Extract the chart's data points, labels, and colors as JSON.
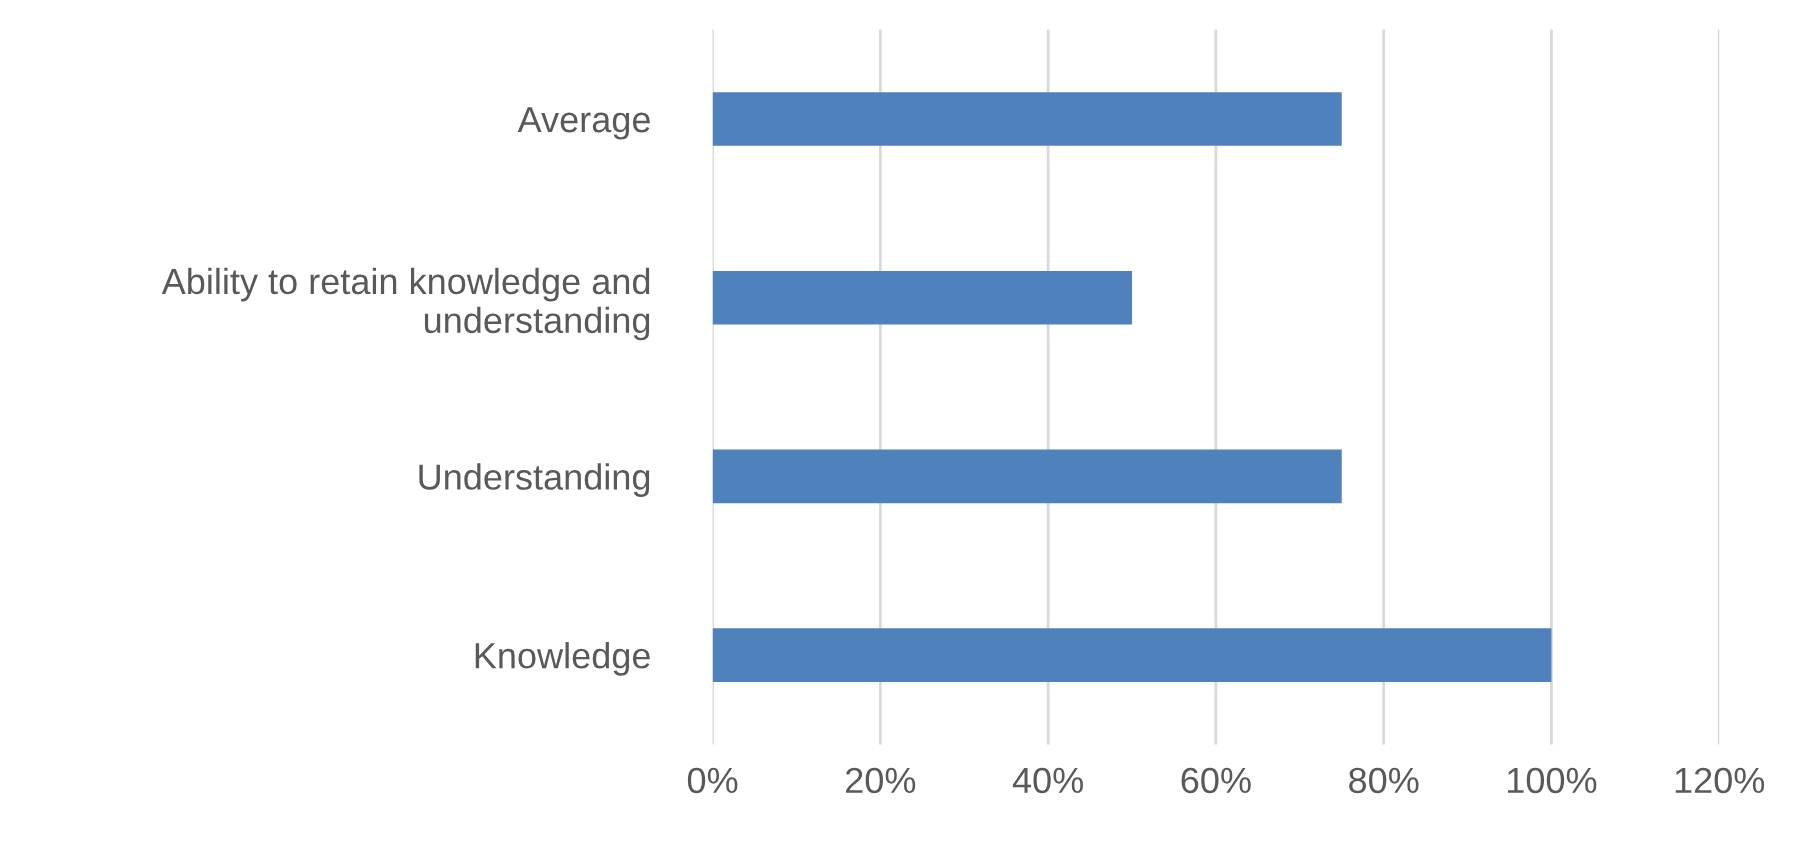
{
  "chart_data": {
    "type": "bar",
    "orientation": "horizontal",
    "categories": [
      "Average",
      "Ability to retain knowledge and\nunderstanding",
      "Understanding",
      "Knowledge"
    ],
    "values": [
      75,
      50,
      75,
      100
    ],
    "color": "#4f81bd",
    "xlim": [
      0,
      120
    ],
    "xticks": [
      {
        "value": 0,
        "label": "0%"
      },
      {
        "value": 20,
        "label": "20%"
      },
      {
        "value": 40,
        "label": "40%"
      },
      {
        "value": 60,
        "label": "60%"
      },
      {
        "value": 80,
        "label": "80%"
      },
      {
        "value": 100,
        "label": "100%"
      },
      {
        "value": 120,
        "label": "120%"
      }
    ],
    "grid": "x"
  }
}
